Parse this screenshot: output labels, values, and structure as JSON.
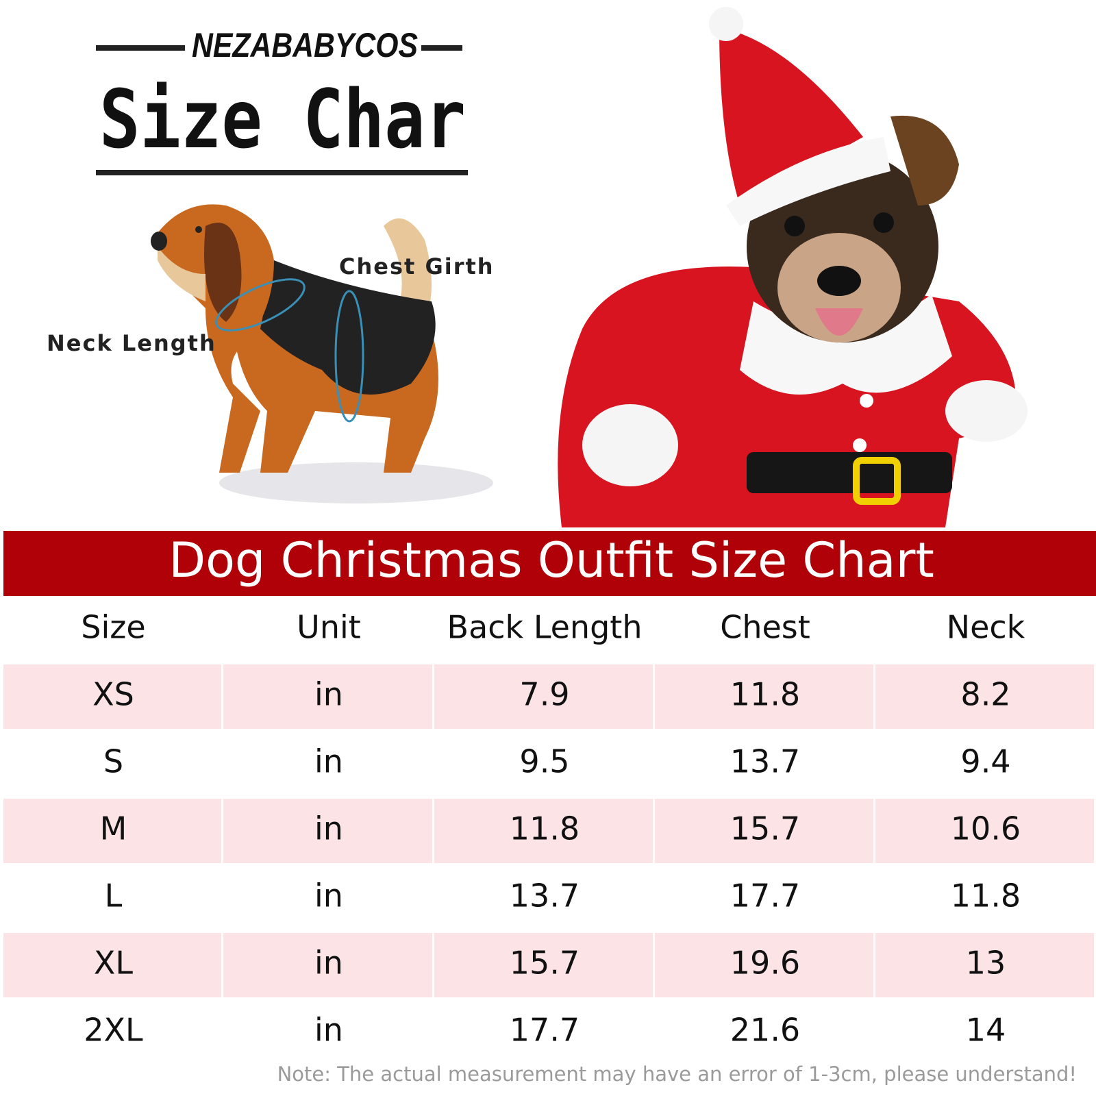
{
  "header": {
    "brand": "NEZABABYCOS",
    "title": "Size Char"
  },
  "diagram": {
    "chest_label": "Chest Girth",
    "neck_label": "Neck Length"
  },
  "banner": "Dog Christmas Outfit Size Chart",
  "table": {
    "columns": [
      "Size",
      "Unit",
      "Back Length",
      "Chest",
      "Neck"
    ],
    "rows": [
      [
        "XS",
        "in",
        "7.9",
        "11.8",
        "8.2"
      ],
      [
        "S",
        "in",
        "9.5",
        "13.7",
        "9.4"
      ],
      [
        "M",
        "in",
        "11.8",
        "15.7",
        "10.6"
      ],
      [
        "L",
        "in",
        "13.7",
        "17.7",
        "11.8"
      ],
      [
        "XL",
        "in",
        "15.7",
        "19.6",
        "13"
      ],
      [
        "2XL",
        "in",
        "17.7",
        "21.6",
        "14"
      ]
    ]
  },
  "note": "Note: The actual measurement may have an error of 1-3cm, please understand!"
}
